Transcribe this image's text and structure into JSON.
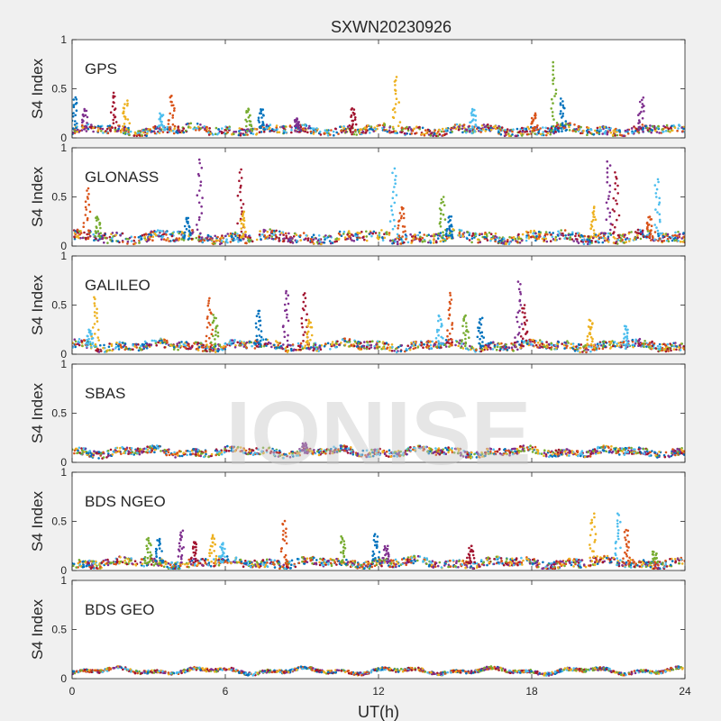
{
  "figure": {
    "title": "SXWN20230926",
    "xlabel": "UT(h)",
    "watermark": "IONISE",
    "background": "#f0f0f0",
    "axes_background": "#ffffff"
  },
  "chart_data": {
    "type": "scatter",
    "title": "SXWN20230926",
    "xlabel": "UT(h)",
    "ylabel": "S4 Index",
    "xlim": [
      0,
      24
    ],
    "ylim": [
      0,
      1
    ],
    "xticks": [
      0,
      6,
      12,
      18,
      24
    ],
    "yticks": [
      0,
      0.5,
      1
    ],
    "xtick_labels": [
      "0",
      "6",
      "12",
      "18",
      "24"
    ],
    "ytick_labels": [
      "0",
      "0.5",
      "1"
    ],
    "grid": false,
    "palette": [
      "#0072bd",
      "#d95319",
      "#edb120",
      "#7e2f8e",
      "#77ac30",
      "#4dbeee",
      "#a2142f"
    ],
    "panels": [
      {
        "label": "GPS",
        "baseline": 0.07,
        "noise": 0.04,
        "spikes": [
          {
            "x": 0.1,
            "y": 0.42
          },
          {
            "x": 0.5,
            "y": 0.3
          },
          {
            "x": 1.6,
            "y": 0.46
          },
          {
            "x": 2.1,
            "y": 0.38
          },
          {
            "x": 3.5,
            "y": 0.25
          },
          {
            "x": 3.9,
            "y": 0.44
          },
          {
            "x": 6.9,
            "y": 0.3
          },
          {
            "x": 7.4,
            "y": 0.3
          },
          {
            "x": 8.8,
            "y": 0.2
          },
          {
            "x": 11.0,
            "y": 0.3
          },
          {
            "x": 12.7,
            "y": 0.62
          },
          {
            "x": 15.7,
            "y": 0.3
          },
          {
            "x": 18.1,
            "y": 0.25
          },
          {
            "x": 18.9,
            "y": 0.77
          },
          {
            "x": 19.2,
            "y": 0.4
          },
          {
            "x": 22.3,
            "y": 0.41
          }
        ]
      },
      {
        "label": "GLONASS",
        "baseline": 0.08,
        "noise": 0.05,
        "spikes": [
          {
            "x": 0.6,
            "y": 0.6
          },
          {
            "x": 1.0,
            "y": 0.3
          },
          {
            "x": 4.5,
            "y": 0.3
          },
          {
            "x": 5.0,
            "y": 0.88
          },
          {
            "x": 6.6,
            "y": 0.78
          },
          {
            "x": 6.7,
            "y": 0.35
          },
          {
            "x": 12.6,
            "y": 0.79
          },
          {
            "x": 12.9,
            "y": 0.4
          },
          {
            "x": 14.5,
            "y": 0.5
          },
          {
            "x": 14.8,
            "y": 0.3
          },
          {
            "x": 21.0,
            "y": 0.87
          },
          {
            "x": 21.3,
            "y": 0.75
          },
          {
            "x": 20.4,
            "y": 0.4
          },
          {
            "x": 22.9,
            "y": 0.68
          },
          {
            "x": 22.6,
            "y": 0.3
          }
        ]
      },
      {
        "label": "GALILEO",
        "baseline": 0.08,
        "noise": 0.04,
        "spikes": [
          {
            "x": 0.9,
            "y": 0.58
          },
          {
            "x": 0.7,
            "y": 0.25
          },
          {
            "x": 5.4,
            "y": 0.57
          },
          {
            "x": 5.6,
            "y": 0.4
          },
          {
            "x": 7.3,
            "y": 0.45
          },
          {
            "x": 8.4,
            "y": 0.65
          },
          {
            "x": 9.1,
            "y": 0.62
          },
          {
            "x": 9.3,
            "y": 0.35
          },
          {
            "x": 14.4,
            "y": 0.4
          },
          {
            "x": 14.8,
            "y": 0.63
          },
          {
            "x": 15.4,
            "y": 0.4
          },
          {
            "x": 16.0,
            "y": 0.38
          },
          {
            "x": 17.5,
            "y": 0.75
          },
          {
            "x": 17.7,
            "y": 0.5
          },
          {
            "x": 20.3,
            "y": 0.35
          },
          {
            "x": 21.7,
            "y": 0.3
          }
        ]
      },
      {
        "label": "SBAS",
        "baseline": 0.1,
        "noise": 0.035,
        "spikes": [
          {
            "x": 9.1,
            "y": 0.2
          }
        ]
      },
      {
        "label": "BDS NGEO",
        "baseline": 0.07,
        "noise": 0.04,
        "spikes": [
          {
            "x": 3.0,
            "y": 0.33
          },
          {
            "x": 3.4,
            "y": 0.32
          },
          {
            "x": 4.3,
            "y": 0.41
          },
          {
            "x": 4.8,
            "y": 0.3
          },
          {
            "x": 5.5,
            "y": 0.36
          },
          {
            "x": 5.9,
            "y": 0.28
          },
          {
            "x": 8.3,
            "y": 0.51
          },
          {
            "x": 10.6,
            "y": 0.35
          },
          {
            "x": 11.9,
            "y": 0.37
          },
          {
            "x": 12.3,
            "y": 0.25
          },
          {
            "x": 15.6,
            "y": 0.25
          },
          {
            "x": 20.4,
            "y": 0.58
          },
          {
            "x": 21.4,
            "y": 0.58
          },
          {
            "x": 21.7,
            "y": 0.42
          },
          {
            "x": 22.8,
            "y": 0.2
          }
        ]
      },
      {
        "label": "BDS GEO",
        "baseline": 0.075,
        "noise": 0.015,
        "spikes": []
      }
    ]
  }
}
